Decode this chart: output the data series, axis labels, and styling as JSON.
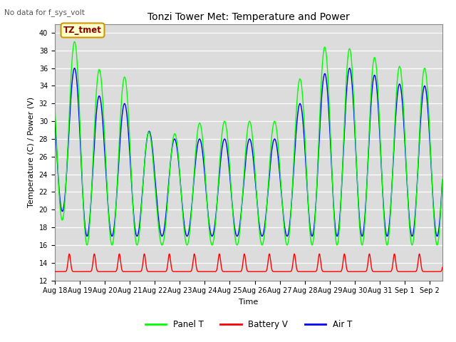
{
  "title": "Tonzi Tower Met: Temperature and Power",
  "top_label": "No data for f_sys_volt",
  "annotation_text": "TZ_tmet",
  "ylabel": "Temperature (C) / Power (V)",
  "xlabel": "Time",
  "ylim": [
    12,
    41
  ],
  "yticks": [
    12,
    14,
    16,
    18,
    20,
    22,
    24,
    26,
    28,
    30,
    32,
    34,
    36,
    38,
    40
  ],
  "bg_color": "#dcdcdc",
  "panel_color": "#00ff00",
  "battery_color": "#ff0000",
  "air_color": "#0000ff",
  "num_days": 15.5,
  "legend_labels": [
    "Panel T",
    "Battery V",
    "Air T"
  ],
  "tick_labels": [
    "Aug 18",
    "Aug 19",
    "Aug 20",
    "Aug 21",
    "Aug 22",
    "Aug 23",
    "Aug 24",
    "Aug 25",
    "Aug 26",
    "Aug 27",
    "Aug 28",
    "Aug 29",
    "Aug 30",
    "Aug 31",
    "Sep 1",
    "Sep 2"
  ],
  "top_label_color": "#555555",
  "title_fontsize": 10,
  "axis_fontsize": 8,
  "tick_fontsize": 7
}
